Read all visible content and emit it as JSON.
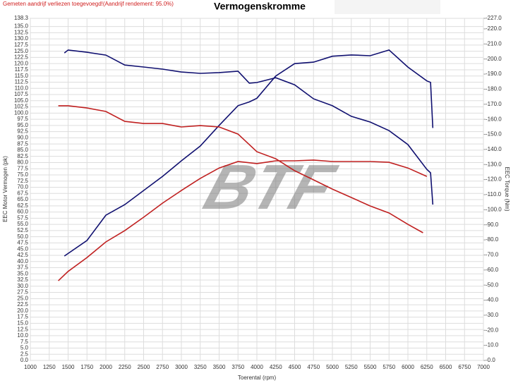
{
  "chart_data": {
    "type": "line",
    "title": "Vermogenskromme",
    "subtitle": "Gemeten aandrijf verliezen toegevoegd!(Aandrijf rendement: 95.0%)",
    "logo": "BTF",
    "x_label": "Toerental (rpm)",
    "y_label": "EEC Motor Vermogen (pk)",
    "y2_label": "EEC Torque (Nm)",
    "grid": true,
    "xlim": [
      1000,
      7000
    ],
    "xticks": [
      1000,
      1250,
      1500,
      1750,
      2000,
      2250,
      2500,
      2750,
      3000,
      3250,
      3500,
      3750,
      4000,
      4250,
      4500,
      4750,
      5000,
      5250,
      5500,
      5750,
      6000,
      6250,
      6500,
      6750,
      7000
    ],
    "ylim": [
      0,
      138.3
    ],
    "yticks": [
      {
        "value": 0,
        "label": "0.0"
      },
      2.5,
      {
        "value": 5,
        "label": "5.0"
      },
      7.5,
      {
        "value": 10,
        "label": "10.0"
      },
      12.5,
      {
        "value": 15,
        "label": "15.0"
      },
      17.5,
      {
        "value": 20,
        "label": "20.0"
      },
      22.5,
      {
        "value": 25,
        "label": "25.0"
      },
      27.5,
      {
        "value": 30,
        "label": "30.0"
      },
      32.5,
      {
        "value": 35,
        "label": "35.0"
      },
      37.5,
      {
        "value": 40,
        "label": "40.0"
      },
      42.5,
      {
        "value": 45,
        "label": "45.0"
      },
      47.5,
      {
        "value": 50,
        "label": "50.0"
      },
      52.5,
      {
        "value": 55,
        "label": "55.0"
      },
      57.5,
      {
        "value": 60,
        "label": "60.0"
      },
      62.5,
      {
        "value": 65,
        "label": "65.0"
      },
      67.5,
      {
        "value": 70,
        "label": "70.0"
      },
      72.5,
      {
        "value": 75,
        "label": "75.0"
      },
      77.5,
      {
        "value": 80,
        "label": "80.0"
      },
      82.5,
      {
        "value": 85,
        "label": "85.0"
      },
      87.5,
      {
        "value": 90,
        "label": "90.0"
      },
      92.5,
      {
        "value": 95,
        "label": "95.0"
      },
      97.5,
      {
        "value": 100,
        "label": "100.0"
      },
      102.5,
      {
        "value": 105,
        "label": "105.0"
      },
      107.5,
      {
        "value": 110,
        "label": "110.0"
      },
      112.5,
      {
        "value": 115,
        "label": "115.0"
      },
      117.5,
      {
        "value": 120,
        "label": "120.0"
      },
      122.5,
      {
        "value": 125,
        "label": "125.0"
      },
      127.5,
      {
        "value": 130,
        "label": "130.0"
      },
      132.5,
      {
        "value": 135,
        "label": "135.0"
      },
      138.3
    ],
    "y2lim": [
      0,
      227
    ],
    "y2ticks": [
      {
        "value": 0,
        "label": "-0.0"
      },
      {
        "value": 10,
        "label": "-10.0"
      },
      {
        "value": 20,
        "label": "-20.0"
      },
      {
        "value": 30,
        "label": "-30.0"
      },
      {
        "value": 40,
        "label": "-40.0"
      },
      {
        "value": 50,
        "label": "-50.0"
      },
      {
        "value": 60,
        "label": "-60.0"
      },
      {
        "value": 70,
        "label": "-70.0"
      },
      {
        "value": 80,
        "label": "-80.0"
      },
      {
        "value": 90,
        "label": "-90.0"
      },
      {
        "value": 100,
        "label": "-100.0"
      },
      {
        "value": 110,
        "label": "-110.0"
      },
      {
        "value": 120,
        "label": "-120.0"
      },
      {
        "value": 130,
        "label": "-130.0"
      },
      {
        "value": 140,
        "label": "-140.0"
      },
      {
        "value": 150,
        "label": "-150.0"
      },
      {
        "value": 160,
        "label": "-160.0"
      },
      {
        "value": 170,
        "label": "-170.0"
      },
      {
        "value": 180,
        "label": "-180.0"
      },
      {
        "value": 190,
        "label": "-190.0"
      },
      {
        "value": 200,
        "label": "-200.0"
      },
      {
        "value": 210,
        "label": "-210.0"
      },
      {
        "value": 220,
        "label": "-220.0"
      },
      {
        "value": 227,
        "label": "-227.0"
      }
    ],
    "series": [
      {
        "color": "#101070",
        "x": [
          1450,
          1750,
          2000,
          2250,
          2500,
          2750,
          3000,
          3250,
          3500,
          3750,
          3900,
          4000,
          4250,
          4500,
          4750,
          5000,
          5250,
          5500,
          5750,
          6000,
          6250,
          6300,
          6330
        ],
        "values": [
          42.2,
          48.5,
          58.7,
          63,
          68.7,
          74.4,
          80.7,
          86.7,
          95,
          103,
          104.5,
          106,
          115,
          120,
          120.6,
          123,
          123.5,
          123.2,
          125.5,
          118.6,
          113,
          112.4,
          94
        ]
      },
      {
        "color": "#c02020",
        "x": [
          1370,
          1500,
          1750,
          2000,
          2250,
          2500,
          2750,
          3000,
          3250,
          3500,
          3750,
          4000,
          4250,
          4500,
          4750,
          5000,
          5500,
          5750,
          6000,
          6250
        ],
        "values": [
          32.2,
          36,
          41.6,
          47.9,
          52.5,
          57.9,
          63.6,
          68.7,
          73.6,
          77.8,
          80.4,
          79.6,
          80.7,
          80.7,
          81,
          80.4,
          80.4,
          80.1,
          77.8,
          74.4
        ]
      },
      {
        "color": "#101070",
        "axis": "y2",
        "x": [
          1450,
          1500,
          1750,
          2000,
          2250,
          2500,
          2750,
          3000,
          3250,
          3500,
          3750,
          3900,
          4000,
          4250,
          4500,
          4750,
          5000,
          5250,
          5500,
          5750,
          6000,
          6250,
          6300,
          6330
        ],
        "values": [
          204,
          206,
          204.5,
          202.6,
          196,
          194.7,
          193.3,
          191.4,
          190.5,
          191,
          191.9,
          184,
          184.4,
          187.6,
          182.9,
          173.6,
          169,
          162,
          158.2,
          152.5,
          143.2,
          126.8,
          124.5,
          103.4
        ]
      },
      {
        "color": "#c02020",
        "axis": "y2",
        "x": [
          1370,
          1500,
          1750,
          2000,
          2250,
          2500,
          2750,
          3000,
          3250,
          3500,
          3750,
          4000,
          4250,
          4500,
          4750,
          5000,
          5250,
          5500,
          5750,
          6000,
          6200
        ],
        "values": [
          169,
          169,
          167.5,
          165.2,
          158.6,
          157.2,
          157.2,
          154.9,
          155.8,
          154.9,
          150.2,
          138.5,
          133.8,
          125.9,
          119.8,
          113.7,
          108.1,
          102.5,
          97.8,
          90.3,
          84.7
        ]
      }
    ]
  }
}
